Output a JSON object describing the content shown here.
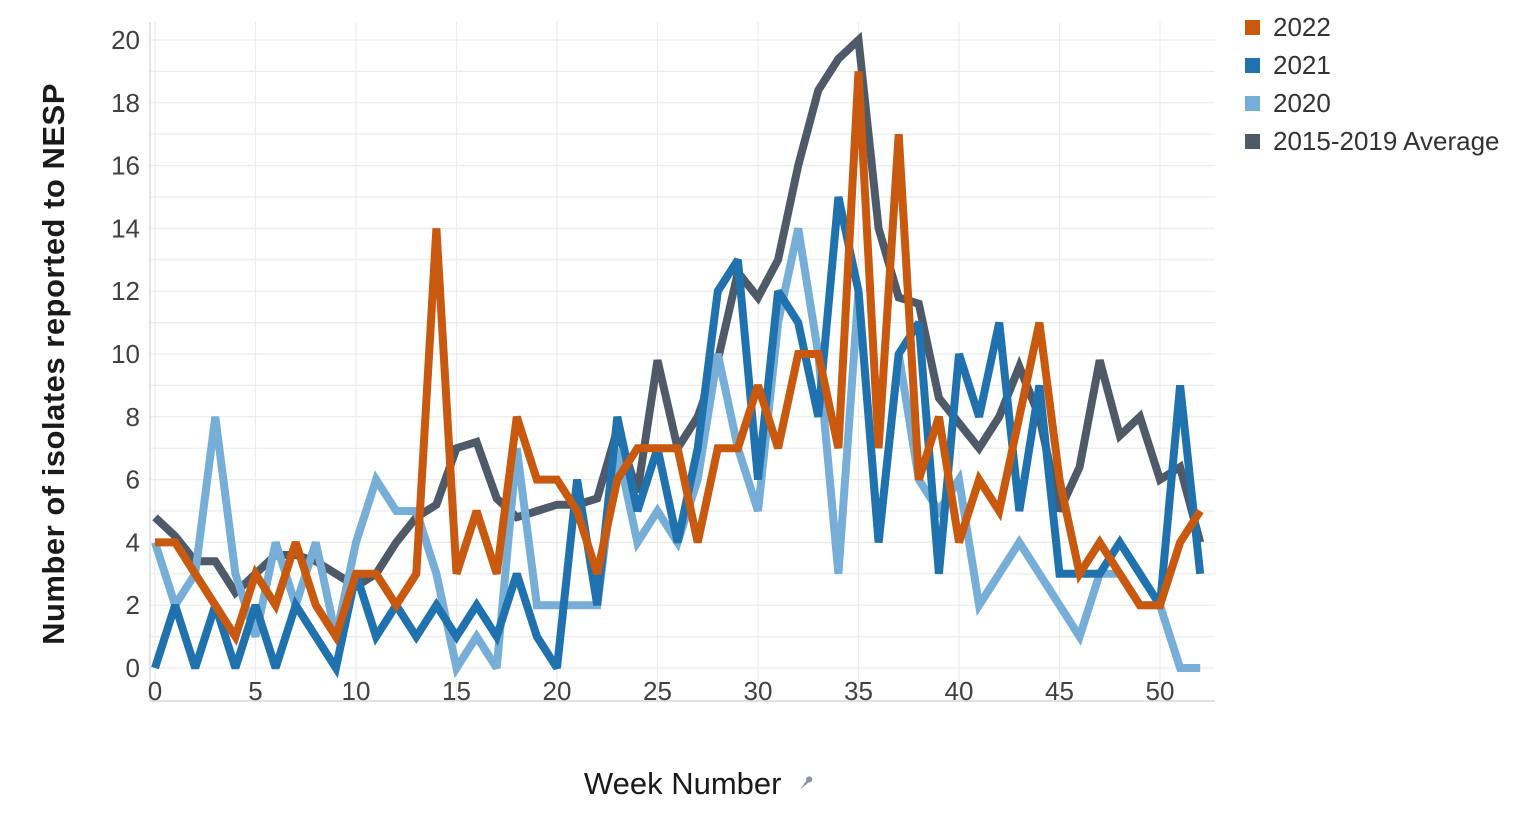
{
  "chart_data": {
    "type": "line",
    "title": "",
    "xlabel": "Week Number",
    "ylabel": "Number of isolates reported to NESP",
    "xlim": [
      0,
      52
    ],
    "ylim": [
      0,
      20
    ],
    "grid": "on",
    "legend_position": "top-right",
    "x_ticks": [
      0,
      5,
      10,
      15,
      20,
      25,
      30,
      35,
      40,
      45,
      50
    ],
    "y_ticks": [
      0,
      2,
      4,
      6,
      8,
      10,
      12,
      14,
      16,
      18,
      20
    ],
    "x": [
      0,
      1,
      2,
      3,
      4,
      5,
      6,
      7,
      8,
      9,
      10,
      11,
      12,
      13,
      14,
      15,
      16,
      17,
      18,
      19,
      20,
      21,
      22,
      23,
      24,
      25,
      26,
      27,
      28,
      29,
      30,
      31,
      32,
      33,
      34,
      35,
      36,
      37,
      38,
      39,
      40,
      41,
      42,
      43,
      44,
      45,
      46,
      47,
      48,
      49,
      50,
      51,
      52
    ],
    "series": [
      {
        "name": "2022",
        "color": "#C8590F",
        "values": [
          4,
          4,
          3,
          2,
          1,
          3,
          2,
          4,
          2,
          1,
          3,
          3,
          2,
          3,
          14,
          3,
          5,
          3,
          8,
          6,
          6,
          5,
          3,
          6,
          7,
          7,
          7,
          4,
          7,
          7,
          9,
          7,
          10,
          10,
          7,
          19,
          7,
          17,
          6,
          8,
          4,
          6,
          5,
          8,
          11,
          6,
          3,
          4,
          3,
          2,
          2,
          4,
          5
        ]
      },
      {
        "name": "2021",
        "color": "#2072AE",
        "values": [
          0,
          2,
          0,
          2,
          0,
          2,
          0,
          2,
          1,
          0,
          3,
          1,
          2,
          1,
          2,
          1,
          2,
          1,
          3,
          1,
          0,
          6,
          2,
          8,
          5,
          7,
          4,
          7,
          12,
          13,
          6,
          12,
          11,
          8,
          15,
          12,
          4,
          10,
          11,
          3,
          10,
          8,
          11,
          5,
          9,
          3,
          3,
          3,
          4,
          3,
          2,
          9,
          3
        ]
      },
      {
        "name": "2020",
        "color": "#76AED7",
        "values": [
          4,
          2,
          3,
          8,
          3,
          1,
          4,
          2,
          4,
          1,
          4,
          6,
          5,
          5,
          3,
          0,
          1,
          0,
          7,
          2,
          2,
          2,
          2,
          7,
          4,
          5,
          4,
          6,
          10,
          7,
          5,
          11,
          14,
          10,
          3,
          12,
          4,
          10,
          6,
          5,
          6,
          2,
          3,
          4,
          3,
          2,
          1,
          3,
          3,
          2,
          2,
          0,
          0
        ]
      },
      {
        "name": "2015-2019 Average",
        "color": "#4E5A68",
        "values": [
          4.8,
          4.2,
          3.4,
          3.4,
          2.4,
          3,
          3.6,
          3.6,
          3.4,
          3,
          2.6,
          3,
          4,
          4.8,
          5.2,
          7,
          7.2,
          5.4,
          4.8,
          5,
          5.2,
          5.2,
          5.4,
          7.6,
          5.6,
          9.8,
          7,
          8,
          9.8,
          12.6,
          11.8,
          13,
          16,
          18.4,
          19.4,
          20,
          14,
          11.8,
          11.6,
          8.6,
          7.8,
          7,
          8,
          9.6,
          8,
          5,
          6.4,
          9.8,
          7.4,
          8,
          6,
          6.4,
          4
        ]
      }
    ],
    "style": {
      "grid_color": "#ECECEC",
      "axis_border_color": "#D8D8D8",
      "tick_label_color": "#414141",
      "pin_icon_color": "#8A93A0"
    }
  }
}
